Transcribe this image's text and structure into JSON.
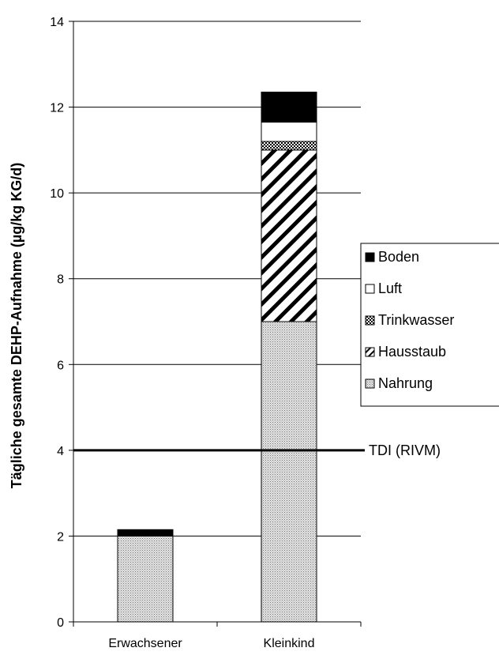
{
  "chart_data": {
    "type": "bar",
    "stacked": true,
    "title": "",
    "xlabel": "",
    "ylabel": "Tägliche gesamte DEHP-Aufnahme (µg/kg KG/d)",
    "ylim": [
      0,
      14
    ],
    "yticks": [
      0,
      2,
      4,
      6,
      8,
      10,
      12,
      14
    ],
    "grid": true,
    "legend_position": "right",
    "categories": [
      "Erwachsener",
      "Kleinkind"
    ],
    "series": [
      {
        "name": "Nahrung",
        "values": [
          2.0,
          7.0
        ],
        "pattern": "dots"
      },
      {
        "name": "Hausstaub",
        "values": [
          0.0,
          4.0
        ],
        "pattern": "diagonal"
      },
      {
        "name": "Trinkwasser",
        "values": [
          0.0,
          0.2
        ],
        "pattern": "checker"
      },
      {
        "name": "Luft",
        "values": [
          0.0,
          0.45
        ],
        "pattern": "white"
      },
      {
        "name": "Boden",
        "values": [
          0.15,
          0.7
        ],
        "pattern": "black"
      }
    ],
    "reference_line": {
      "label": "TDI (RIVM)",
      "value": 4
    }
  }
}
